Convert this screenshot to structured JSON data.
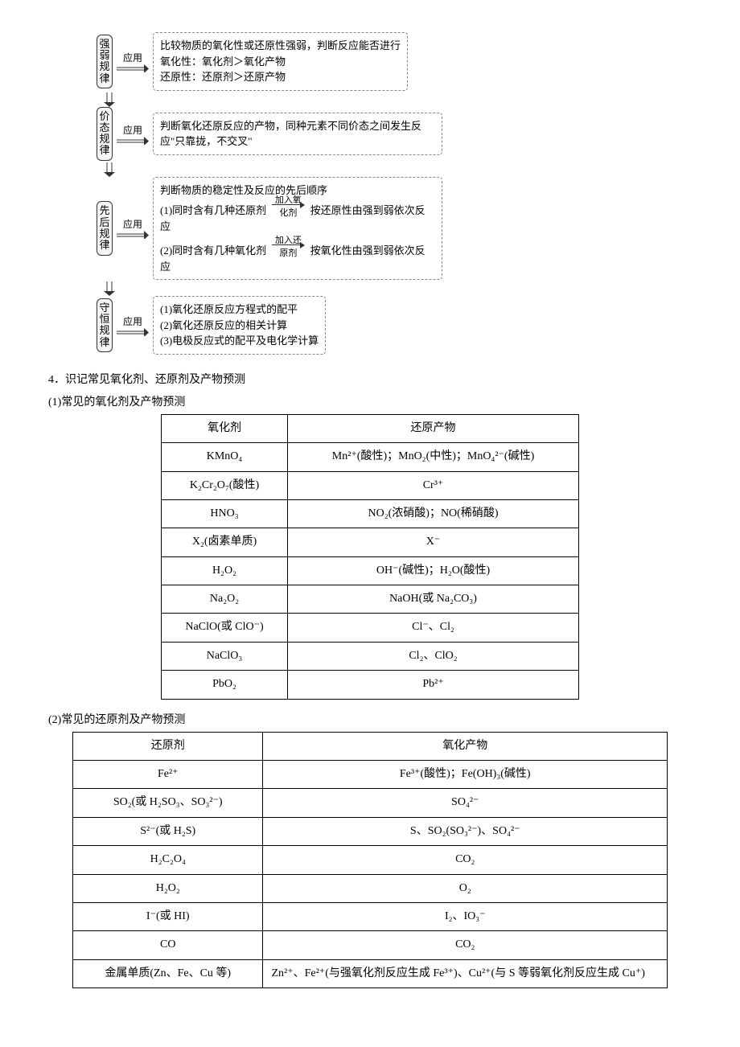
{
  "diagram": {
    "arrow_label": "应用",
    "rules": [
      {
        "name": "强弱规律",
        "lines": [
          "比较物质的氧化性或还原性强弱，判断反应能否进行",
          "氧化性：氧化剂＞氧化产物",
          "还原性：还原剂＞还原产物"
        ]
      },
      {
        "name": "价态规律",
        "lines": [
          "判断氧化还原反应的产物，同种元素不同价态之间发生反应\"只靠拢，不交叉\""
        ]
      },
      {
        "name": "先后规律",
        "lines": [
          "判断物质的稳定性及反应的先后顺序"
        ],
        "sub1_prefix": "(1)同时含有几种还原剂",
        "sub1_top": "加入氧",
        "sub1_bot": "化剂",
        "sub1_suffix": "按还原性由强到弱依次反应",
        "sub2_prefix": "(2)同时含有几种氧化剂",
        "sub2_top": "加入还",
        "sub2_bot": "原剂",
        "sub2_suffix": "按氧化性由强到弱依次反应"
      },
      {
        "name": "守恒规律",
        "lines": [
          "(1)氧化还原反应方程式的配平",
          "(2)氧化还原反应的相关计算",
          "(3)电极反应式的配平及电化学计算"
        ]
      }
    ]
  },
  "section4": "4．识记常见氧化剂、还原剂及产物预测",
  "sub1": "(1)常见的氧化剂及产物预测",
  "sub2": "(2)常见的还原剂及产物预测",
  "table1": {
    "headers": [
      "氧化剂",
      "还原产物"
    ],
    "rows": [
      [
        "KMnO₄",
        "Mn²⁺(酸性)；MnO₂(中性)；MnO₄²⁻(碱性)"
      ],
      [
        "K₂Cr₂O₇(酸性)",
        "Cr³⁺"
      ],
      [
        "HNO₃",
        "NO₂(浓硝酸)；NO(稀硝酸)"
      ],
      [
        "X₂(卤素单质)",
        "X⁻"
      ],
      [
        "H₂O₂",
        "OH⁻(碱性)；H₂O(酸性)"
      ],
      [
        "Na₂O₂",
        "NaOH(或 Na₂CO₃)"
      ],
      [
        "NaClO(或 ClO⁻)",
        "Cl⁻、Cl₂"
      ],
      [
        "NaClO₃",
        "Cl₂、ClO₂"
      ],
      [
        "PbO₂",
        "Pb²⁺"
      ]
    ]
  },
  "table2": {
    "headers": [
      "还原剂",
      "氧化产物"
    ],
    "rows": [
      [
        "Fe²⁺",
        "Fe³⁺(酸性)；Fe(OH)₃(碱性)"
      ],
      [
        "SO₂(或 H₂SO₃、SO₃²⁻)",
        "SO₄²⁻"
      ],
      [
        "S²⁻(或 H₂S)",
        "S、SO₂(SO₃²⁻)、SO₄²⁻"
      ],
      [
        "H₂C₂O₄",
        "CO₂"
      ],
      [
        "H₂O₂",
        "O₂"
      ],
      [
        "I⁻(或 HI)",
        "I₂、IO₃⁻"
      ],
      [
        "CO",
        "CO₂"
      ],
      [
        "金属单质(Zn、Fe、Cu 等)",
        "Zn²⁺、Fe²⁺(与强氧化剂反应生成 Fe³⁺)、Cu²⁺(与 S 等弱氧化剂反应生成 Cu⁺)"
      ]
    ]
  }
}
